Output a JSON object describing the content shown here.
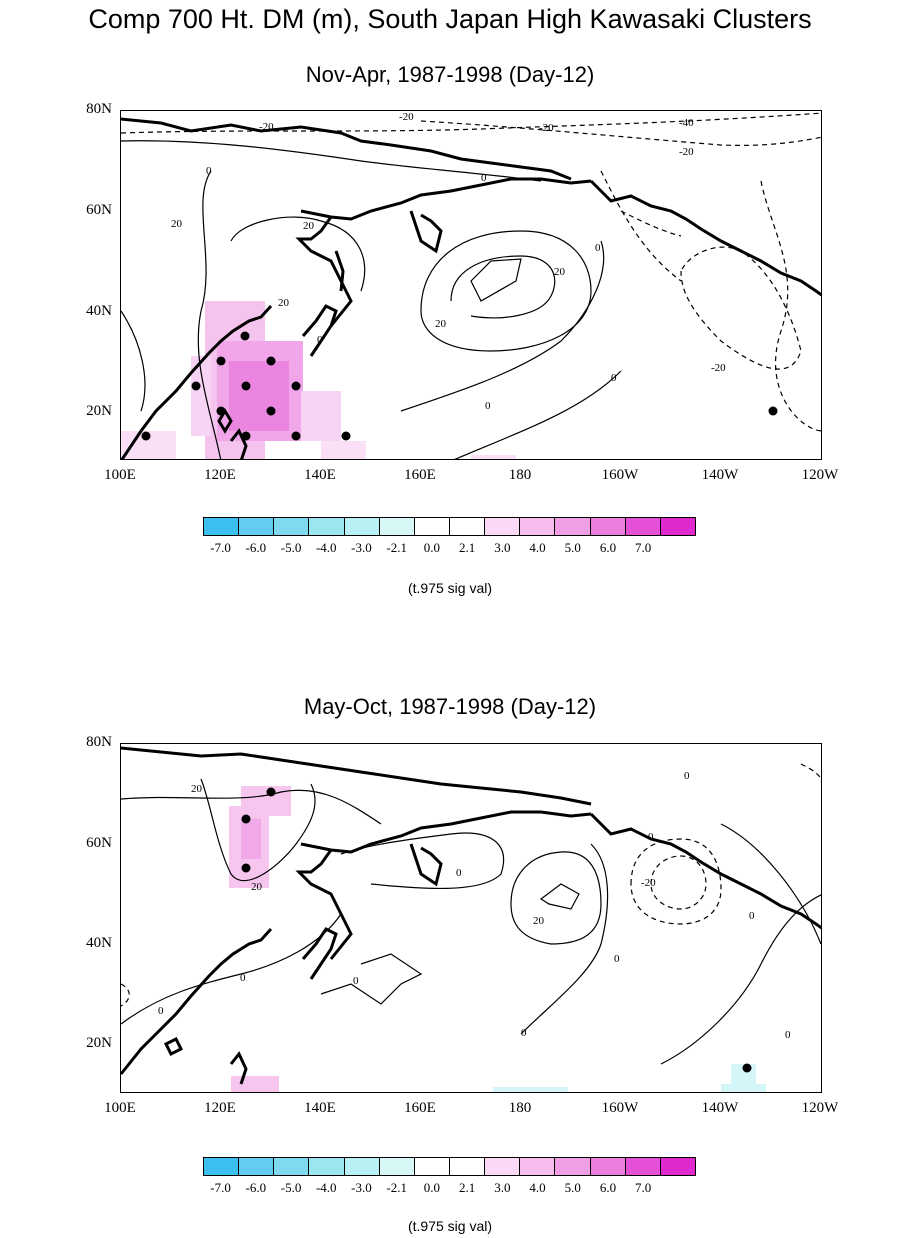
{
  "title": "Comp 700 Ht. DM (m), South Japan High Kawasaki Clusters",
  "colorbar": {
    "ticks": [
      "-7.0",
      "-6.0",
      "-5.0",
      "-4.0",
      "-3.0",
      "-2.1",
      "0.0",
      "2.1",
      "3.0",
      "4.0",
      "5.0",
      "6.0",
      "7.0"
    ],
    "label": "(t.975 sig val)",
    "colors": [
      "#3cc0f0",
      "#62cdf0",
      "#7fdaf0",
      "#9ce6f2",
      "#b8f0f4",
      "#d8f8f8",
      "#ffffff",
      "#ffffff",
      "#fad8f6",
      "#f6bdee",
      "#f09ee6",
      "#ea7edd",
      "#e450d6",
      "#df2ad0"
    ]
  },
  "lat_labels": [
    "80N",
    "60N",
    "40N",
    "20N"
  ],
  "lon_labels": [
    "100E",
    "120E",
    "140E",
    "160E",
    "180",
    "160W",
    "140W",
    "120W"
  ],
  "panels": [
    {
      "subtitle": "Nov-Apr, 1987-1998 (Day-12)",
      "contour_labels": [
        "-20",
        "-20",
        "-20",
        "-40",
        "-20",
        "0",
        "20",
        "20",
        "20",
        "0",
        "20",
        "20",
        "0",
        "0",
        "-20",
        "0",
        "0"
      ]
    },
    {
      "subtitle": "May-Oct, 1987-1998 (Day-12)",
      "contour_labels": [
        "20",
        "20",
        "0",
        "0",
        "0",
        "0",
        "20",
        "0",
        "-20",
        "0",
        "0",
        "0",
        "0",
        "0"
      ]
    }
  ]
}
